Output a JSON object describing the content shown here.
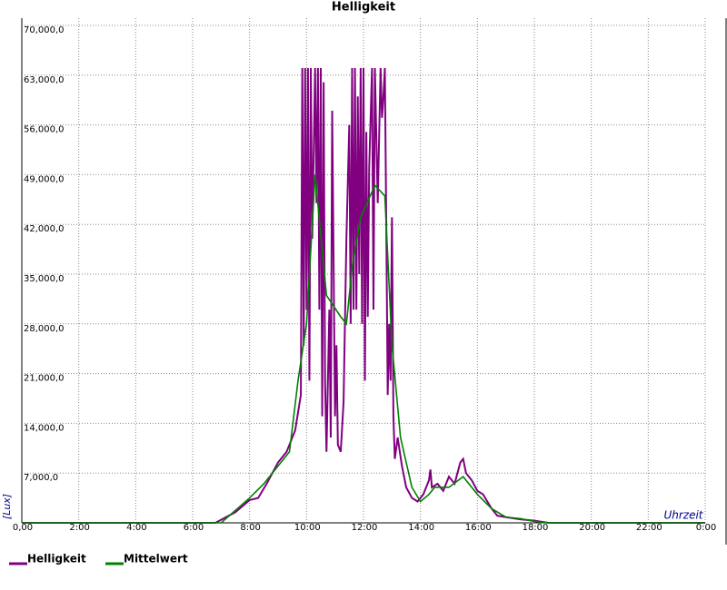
{
  "chart_data": {
    "type": "line",
    "title": "Helligkeit",
    "x_label": "Uhrzeit",
    "y_label": "[Lux]",
    "xlim": [
      0,
      24
    ],
    "ylim": [
      0,
      70000
    ],
    "xticks": [
      {
        "value": 0,
        "label": "0,00"
      },
      {
        "value": 2,
        "label": "2:00"
      },
      {
        "value": 4,
        "label": "4:00"
      },
      {
        "value": 6,
        "label": "6:00"
      },
      {
        "value": 8,
        "label": "8:00"
      },
      {
        "value": 10,
        "label": "10:00"
      },
      {
        "value": 12,
        "label": "12:00"
      },
      {
        "value": 14,
        "label": "14:00"
      },
      {
        "value": 16,
        "label": "16:00"
      },
      {
        "value": 18,
        "label": "18:00"
      },
      {
        "value": 20,
        "label": "20:00"
      },
      {
        "value": 22,
        "label": "22:00"
      },
      {
        "value": 24,
        "label": "0:00"
      }
    ],
    "yticks": [
      {
        "value": 7000,
        "label": "7,000,0"
      },
      {
        "value": 14000,
        "label": "14,000,0"
      },
      {
        "value": 21000,
        "label": "21,000,0"
      },
      {
        "value": 28000,
        "label": "28,000,0"
      },
      {
        "value": 35000,
        "label": "35,000,0"
      },
      {
        "value": 42000,
        "label": "42,000,0"
      },
      {
        "value": 49000,
        "label": "49,000,0"
      },
      {
        "value": 56000,
        "label": "56,000,0"
      },
      {
        "value": 63000,
        "label": "63,000,0"
      },
      {
        "value": 70000,
        "label": "70,000,0"
      }
    ],
    "grid": true,
    "series": [
      {
        "name": "Helligkeit",
        "color": "#800080",
        "x": [
          0,
          6.8,
          7.5,
          8,
          8.3,
          8.6,
          9,
          9.3,
          9.5,
          9.6,
          9.8,
          9.85,
          9.9,
          9.95,
          10,
          10.05,
          10.1,
          10.15,
          10.2,
          10.3,
          10.35,
          10.4,
          10.45,
          10.5,
          10.55,
          10.6,
          10.65,
          10.7,
          10.8,
          10.85,
          10.9,
          11,
          11.05,
          11.1,
          11.2,
          11.3,
          11.4,
          11.5,
          11.55,
          11.6,
          11.65,
          11.7,
          11.75,
          11.8,
          11.85,
          11.9,
          11.95,
          12,
          12.05,
          12.1,
          12.15,
          12.2,
          12.3,
          12.35,
          12.4,
          12.5,
          12.6,
          12.65,
          12.7,
          12.75,
          12.8,
          12.85,
          12.9,
          12.95,
          13,
          13.05,
          13.1,
          13.2,
          13.35,
          13.5,
          13.7,
          13.9,
          14.1,
          14.3,
          14.35,
          14.4,
          14.6,
          14.8,
          15,
          15.2,
          15.4,
          15.5,
          15.6,
          15.8,
          16,
          16.2,
          16.5,
          16.7,
          17,
          17.5,
          18,
          18.5,
          24
        ],
        "values": [
          0,
          0,
          1500,
          3200,
          3500,
          5500,
          8500,
          10000,
          12000,
          13000,
          18000,
          64000,
          25000,
          64000,
          30000,
          64000,
          20000,
          64000,
          40000,
          64000,
          45000,
          64000,
          30000,
          64000,
          15000,
          62000,
          20000,
          10000,
          30000,
          12000,
          58000,
          15000,
          25000,
          11000,
          10000,
          17000,
          40000,
          56000,
          28000,
          64000,
          30000,
          64000,
          30000,
          60000,
          35000,
          64000,
          28000,
          64000,
          20000,
          55000,
          29000,
          50000,
          64000,
          30000,
          64000,
          45000,
          64000,
          57000,
          60000,
          64000,
          42000,
          18000,
          28000,
          20000,
          43000,
          15000,
          9000,
          12000,
          8000,
          5000,
          3500,
          3000,
          4000,
          6000,
          7500,
          5000,
          5500,
          4500,
          6500,
          5500,
          8500,
          9000,
          7000,
          6000,
          4500,
          4000,
          2000,
          1000,
          800,
          500,
          300,
          0,
          0
        ]
      },
      {
        "name": "Mittelwert",
        "color": "#008000",
        "x": [
          0,
          7,
          8,
          8.5,
          9,
          9.4,
          9.7,
          10,
          10.3,
          10.7,
          11.2,
          11.4,
          11.6,
          11.9,
          12.4,
          12.75,
          13,
          13.3,
          13.7,
          14,
          14.3,
          14.5,
          15,
          15.5,
          16,
          16.5,
          17,
          17.5,
          18,
          18.5,
          24
        ],
        "values": [
          0,
          0,
          3500,
          5500,
          8000,
          10000,
          20000,
          28000,
          49000,
          32000,
          29000,
          28000,
          36000,
          43000,
          47500,
          46000,
          25000,
          12000,
          5000,
          3000,
          4000,
          5000,
          5000,
          6500,
          4000,
          2000,
          800,
          600,
          200,
          0,
          0
        ]
      }
    ]
  }
}
